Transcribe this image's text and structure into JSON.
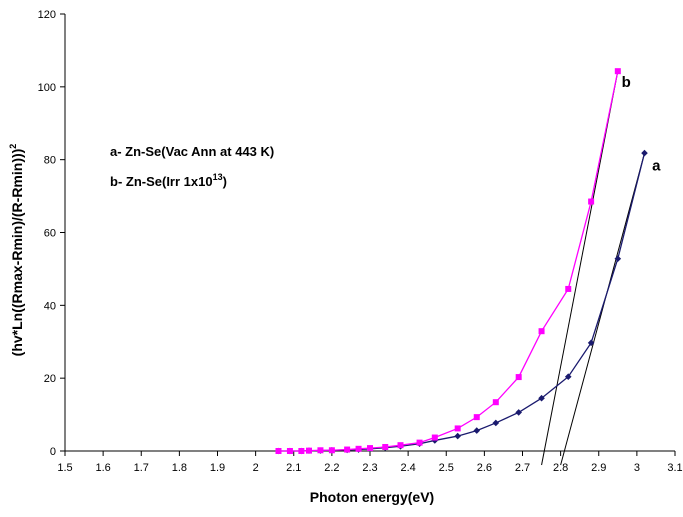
{
  "chart_data": {
    "type": "line",
    "xlabel": "Photon energy(eV)",
    "ylabel_parts": [
      "(hv*Ln((Rmax-Rmin)/(R-Rmin)))",
      "2"
    ],
    "xlim": [
      1.5,
      3.1
    ],
    "ylim": [
      0,
      120
    ],
    "x_ticks": [
      1.5,
      1.6,
      1.7,
      1.8,
      1.9,
      2,
      2.1,
      2.2,
      2.3,
      2.4,
      2.5,
      2.6,
      2.7,
      2.8,
      2.9,
      3,
      3.1
    ],
    "y_ticks": [
      0,
      20,
      40,
      60,
      80,
      100,
      120
    ],
    "grid": false,
    "legend": [
      {
        "parts": [
          "a- Zn-Se(Vac Ann at 443 K)"
        ]
      },
      {
        "parts": [
          "b- Zn-Se(Irr 1x10",
          "13",
          ")"
        ]
      }
    ],
    "series": [
      {
        "id": "a",
        "color": "#1a1a6e",
        "marker": "diamond",
        "x": [
          2.06,
          2.09,
          2.12,
          2.14,
          2.17,
          2.2,
          2.24,
          2.27,
          2.3,
          2.34,
          2.38,
          2.43,
          2.47,
          2.53,
          2.58,
          2.63,
          2.69,
          2.75,
          2.82,
          2.88,
          2.95,
          3.02
        ],
        "y": [
          0,
          0,
          0,
          0.1,
          0.1,
          0.2,
          0.3,
          0.4,
          0.6,
          0.9,
          1.3,
          2.0,
          2.9,
          4.1,
          5.6,
          7.7,
          10.6,
          14.5,
          20.4,
          29.7,
          52.8,
          81.8
        ]
      },
      {
        "id": "b",
        "color": "#ff00ff",
        "marker": "square",
        "x": [
          2.06,
          2.09,
          2.12,
          2.14,
          2.17,
          2.2,
          2.24,
          2.27,
          2.3,
          2.34,
          2.38,
          2.43,
          2.47,
          2.53,
          2.58,
          2.63,
          2.69,
          2.75,
          2.82,
          2.88,
          2.95
        ],
        "y": [
          0,
          0,
          0,
          0.1,
          0.2,
          0.2,
          0.4,
          0.6,
          0.8,
          1.1,
          1.6,
          2.3,
          3.7,
          6.2,
          9.3,
          13.4,
          20.3,
          32.9,
          44.5,
          68.5,
          104.3
        ]
      }
    ],
    "tangents": [
      {
        "series": "a",
        "x": [
          2.8,
          3.02
        ],
        "y": [
          0,
          81.8
        ]
      },
      {
        "series": "b",
        "x": [
          2.75,
          2.95
        ],
        "y": [
          0,
          104.3
        ]
      }
    ],
    "series_labels": [
      {
        "text": "a",
        "x": 3.04,
        "y": 77
      },
      {
        "text": "b",
        "x": 2.96,
        "y": 100
      }
    ]
  }
}
